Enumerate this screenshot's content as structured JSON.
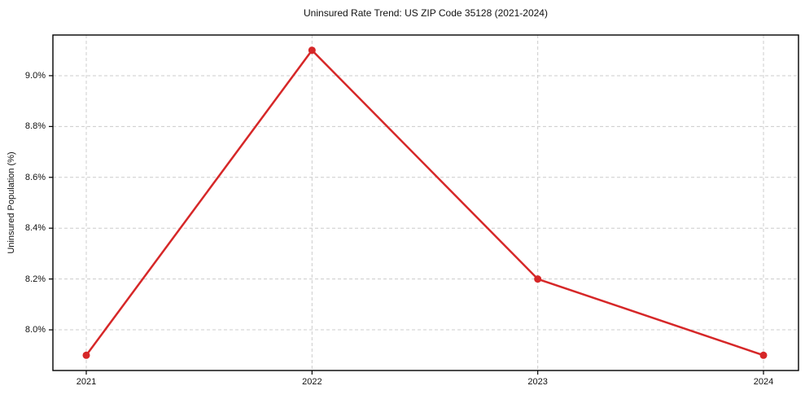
{
  "chart_data": {
    "type": "line",
    "title": "Uninsured Rate Trend: US ZIP Code 35128 (2021-2024)",
    "xlabel": "",
    "ylabel": "Uninsured Population (%)",
    "categories": [
      "2021",
      "2022",
      "2023",
      "2024"
    ],
    "series": [
      {
        "name": "uninsured-rate",
        "values": [
          7.9,
          9.1,
          8.2,
          7.9
        ]
      }
    ],
    "y_ticks": [
      8.0,
      8.2,
      8.4,
      8.6,
      8.8,
      9.0
    ],
    "y_tick_labels": [
      "8.0%",
      "8.2%",
      "8.4%",
      "8.6%",
      "8.8%",
      "9.0%"
    ],
    "ylim": [
      7.84,
      9.16
    ],
    "grid": true,
    "grid_style": "dashed",
    "legend": "none",
    "colors": {
      "line": "#d62728",
      "marker": "#d62728",
      "grid": "#cccccc",
      "spine": "#000000",
      "text": "#111111",
      "background": "#ffffff"
    }
  }
}
